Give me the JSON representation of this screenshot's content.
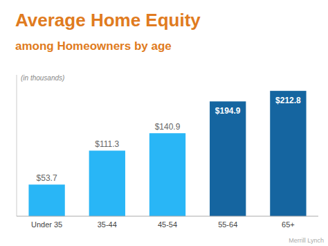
{
  "chart_data": {
    "type": "bar",
    "title": "Average Home Equity",
    "subtitle": "among Homeowners by age",
    "annotations": [
      "(in thousands)",
      "Merrill Lynch"
    ],
    "categories": [
      "Under 35",
      "35-44",
      "45-54",
      "55-64",
      "65+"
    ],
    "values": [
      53.7,
      111.3,
      140.9,
      194.9,
      212.8
    ],
    "value_labels": [
      "$53.7",
      "$111.3",
      "$140.9",
      "$194.9",
      "$212.8"
    ],
    "data_labels": true,
    "colors": [
      "#29b6f6",
      "#29b6f6",
      "#29b6f6",
      "#1565a0",
      "#1565a0"
    ],
    "ylim": [
      0,
      240
    ],
    "tick_labels": "x"
  }
}
